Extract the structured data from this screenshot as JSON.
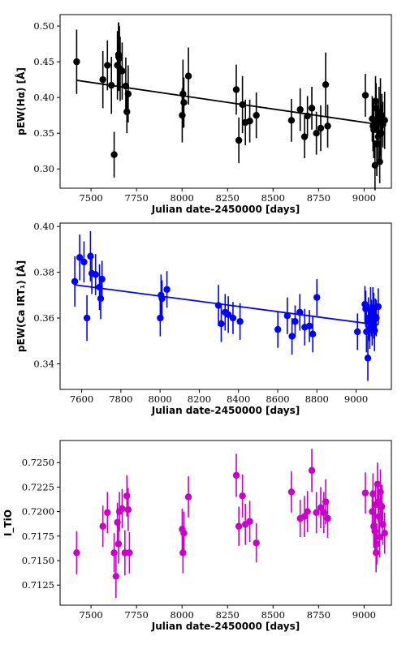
{
  "chart_data": [
    {
      "type": "scatter",
      "xlabel": "Julian date-2450000 [days]",
      "ylabel": "pEW(Hα) [Å]",
      "xlim": [
        7330,
        9150
      ],
      "ylim": [
        0.273,
        0.516
      ],
      "xticks": [
        7500,
        7750,
        8000,
        8250,
        8500,
        8750,
        9000
      ],
      "yticks": [
        0.3,
        0.35,
        0.4,
        0.45,
        0.5
      ],
      "ytick_labels": [
        "0.30",
        "0.35",
        "0.40",
        "0.45",
        "0.50"
      ],
      "color": "#000000",
      "grid": false,
      "series": [
        {
          "x": [
            7421,
            7565,
            7590,
            7612,
            7627,
            7645,
            7651,
            7652,
            7656,
            7660,
            7671,
            7691,
            7697,
            7704,
            8001,
            8005,
            8010,
            8035,
            8298,
            8312,
            8332,
            8348,
            8372,
            8408,
            8601,
            8649,
            8673,
            8689,
            8713,
            8738,
            8762,
            8789,
            8800,
            9007,
            9045,
            9049,
            9053,
            9060,
            9063,
            9066,
            9070,
            9074,
            9078,
            9082,
            9086,
            9090,
            9094,
            9098,
            9103,
            9113
          ],
          "y": [
            0.45,
            0.425,
            0.445,
            0.417,
            0.32,
            0.445,
            0.46,
            0.457,
            0.455,
            0.44,
            0.437,
            0.416,
            0.38,
            0.405,
            0.375,
            0.405,
            0.393,
            0.43,
            0.411,
            0.34,
            0.39,
            0.365,
            0.367,
            0.375,
            0.368,
            0.383,
            0.345,
            0.374,
            0.385,
            0.35,
            0.357,
            0.418,
            0.36,
            0.403,
            0.37,
            0.36,
            0.355,
            0.305,
            0.395,
            0.385,
            0.335,
            0.365,
            0.345,
            0.38,
            0.31,
            0.372,
            0.35,
            0.375,
            0.362,
            0.368
          ],
          "yerr": [
            0.045,
            0.04,
            0.035,
            0.04,
            0.032,
            0.048,
            0.045,
            0.048,
            0.045,
            0.045,
            0.04,
            0.04,
            0.03,
            0.04,
            0.038,
            0.048,
            0.035,
            0.04,
            0.035,
            0.032,
            0.04,
            0.032,
            0.03,
            0.032,
            0.03,
            0.03,
            0.03,
            0.028,
            0.03,
            0.03,
            0.032,
            0.045,
            0.03,
            0.03,
            0.032,
            0.035,
            0.04,
            0.035,
            0.035,
            0.035,
            0.045,
            0.03,
            0.035,
            0.035,
            0.03,
            0.055,
            0.04,
            0.03,
            0.032,
            0.04
          ]
        }
      ],
      "fit_line": {
        "x": [
          7421,
          9113
        ],
        "y": [
          0.424,
          0.361
        ]
      }
    },
    {
      "type": "scatter",
      "xlabel": "Julian date-2450000 [days]",
      "ylabel": "pEW(Ca IRT₁) [Å]",
      "xlim": [
        7490,
        9180
      ],
      "ylim": [
        0.3288,
        0.4015
      ],
      "xticks": [
        7600,
        7800,
        8000,
        8200,
        8400,
        8600,
        8800,
        9000
      ],
      "yticks": [
        0.34,
        0.36,
        0.38,
        0.4
      ],
      "ytick_labels": [
        "0.34",
        "0.36",
        "0.38",
        "0.40"
      ],
      "color": "#0000ff",
      "grid": false,
      "series": [
        {
          "x": [
            7565,
            7590,
            7612,
            7627,
            7645,
            7652,
            7671,
            7691,
            7697,
            7704,
            8001,
            8005,
            8010,
            8035,
            8298,
            8312,
            8332,
            8348,
            8372,
            8408,
            8601,
            8649,
            8673,
            8689,
            8713,
            8738,
            8762,
            8779,
            8800,
            9007,
            9045,
            9049,
            9053,
            9060,
            9063,
            9066,
            9070,
            9074,
            9078,
            9082,
            9086,
            9090,
            9094,
            9098,
            9103,
            9113
          ],
          "y": [
            0.376,
            0.3865,
            0.3845,
            0.36,
            0.387,
            0.3795,
            0.379,
            0.3735,
            0.3685,
            0.377,
            0.36,
            0.37,
            0.3685,
            0.3725,
            0.3655,
            0.3575,
            0.3625,
            0.3615,
            0.36,
            0.3585,
            0.355,
            0.361,
            0.352,
            0.3585,
            0.3625,
            0.356,
            0.3565,
            0.353,
            0.369,
            0.354,
            0.366,
            0.364,
            0.354,
            0.3425,
            0.36,
            0.358,
            0.3555,
            0.3635,
            0.36,
            0.357,
            0.3645,
            0.361,
            0.3545,
            0.3605,
            0.36,
            0.365
          ],
          "yerr": [
            0.011,
            0.01,
            0.009,
            0.01,
            0.011,
            0.009,
            0.009,
            0.01,
            0.009,
            0.008,
            0.008,
            0.009,
            0.008,
            0.008,
            0.009,
            0.008,
            0.008,
            0.008,
            0.007,
            0.008,
            0.008,
            0.008,
            0.008,
            0.007,
            0.008,
            0.008,
            0.007,
            0.008,
            0.008,
            0.008,
            0.008,
            0.008,
            0.009,
            0.01,
            0.009,
            0.008,
            0.009,
            0.01,
            0.008,
            0.009,
            0.009,
            0.01,
            0.009,
            0.008,
            0.008,
            0.008
          ]
        }
      ],
      "fit_line": {
        "x": [
          7565,
          9113
        ],
        "y": [
          0.3745,
          0.357
        ]
      }
    },
    {
      "type": "scatter",
      "xlabel": "Julian date-2450000 [days]",
      "ylabel": "I_TiO",
      "xlim": [
        7330,
        9150
      ],
      "ylim": [
        0.71045,
        0.72725
      ],
      "xticks": [
        7500,
        7750,
        8000,
        8250,
        8500,
        8750,
        9000
      ],
      "yticks": [
        0.7125,
        0.715,
        0.7175,
        0.72,
        0.7225,
        0.725
      ],
      "ytick_labels": [
        "0.7125",
        "0.7150",
        "0.7175",
        "0.7200",
        "0.7225",
        "0.7250"
      ],
      "color": "#c800c8",
      "grid": false,
      "series": [
        {
          "x": [
            7421,
            7565,
            7590,
            7627,
            7637,
            7645,
            7651,
            7656,
            7671,
            7686,
            7697,
            7704,
            7711,
            8001,
            8005,
            8010,
            8035,
            8298,
            8312,
            8332,
            8348,
            8372,
            8408,
            8601,
            8649,
            8673,
            8689,
            8713,
            8738,
            8762,
            8779,
            8789,
            8800,
            9007,
            9045,
            9049,
            9053,
            9060,
            9063,
            9066,
            9070,
            9074,
            9078,
            9082,
            9086,
            9090,
            9094,
            9098,
            9103,
            9113
          ],
          "y": [
            0.7158,
            0.7185,
            0.7199,
            0.7158,
            0.7134,
            0.7189,
            0.7167,
            0.72,
            0.7203,
            0.7158,
            0.7216,
            0.7202,
            0.7158,
            0.7182,
            0.7158,
            0.7178,
            0.7215,
            0.7237,
            0.7185,
            0.7216,
            0.7187,
            0.719,
            0.7168,
            0.722,
            0.7193,
            0.7195,
            0.72,
            0.7242,
            0.7199,
            0.7204,
            0.7199,
            0.721,
            0.7193,
            0.7219,
            0.72,
            0.7218,
            0.7185,
            0.718,
            0.7207,
            0.7158,
            0.7167,
            0.7228,
            0.721,
            0.7195,
            0.7174,
            0.722,
            0.7206,
            0.7205,
            0.7187,
            0.7178
          ],
          "yerr": [
            0.0022,
            0.0021,
            0.0021,
            0.002,
            0.0022,
            0.002,
            0.002,
            0.002,
            0.002,
            0.0023,
            0.0021,
            0.0022,
            0.0021,
            0.0021,
            0.0021,
            0.0022,
            0.0021,
            0.0022,
            0.002,
            0.0022,
            0.0021,
            0.0021,
            0.002,
            0.0021,
            0.0019,
            0.0021,
            0.0021,
            0.0022,
            0.0021,
            0.0021,
            0.0021,
            0.0023,
            0.002,
            0.0021,
            0.0022,
            0.0021,
            0.0022,
            0.0021,
            0.0022,
            0.002,
            0.0021,
            0.0022,
            0.0021,
            0.0022,
            0.0021,
            0.0023,
            0.0021,
            0.0022,
            0.0021,
            0.0021
          ]
        }
      ]
    }
  ]
}
